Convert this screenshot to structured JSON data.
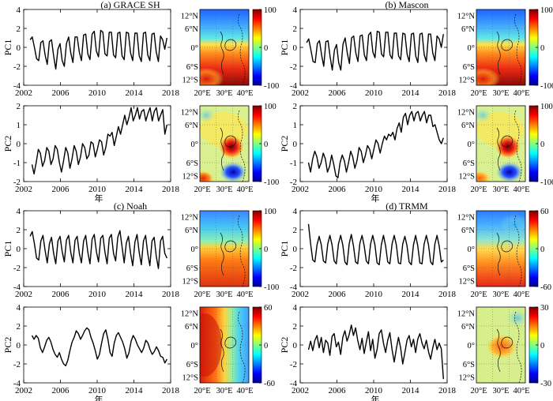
{
  "chart_data": [
    {
      "type": "line",
      "panel": "a",
      "title": "(a) GRACE SH",
      "ylabel": "PC1",
      "xlim": [
        2002,
        2018
      ],
      "ylim": [
        -4,
        4
      ],
      "xticks": [
        2002,
        2006,
        2010,
        2014,
        2018
      ],
      "yticks": [
        -4,
        -2,
        0,
        2,
        4
      ],
      "x_start": 2002.7,
      "values": [
        0.8,
        1.1,
        0.0,
        -1.2,
        -1.4,
        0.5,
        0.7,
        -0.8,
        -1.8,
        0.6,
        0.8,
        -0.9,
        -2.3,
        -0.2,
        0.4,
        -1.4,
        -2.0,
        0.4,
        1.1,
        -0.6,
        -1.6,
        1.1,
        1.1,
        -0.5,
        -1.4,
        1.3,
        1.4,
        -0.7,
        -1.3,
        1.4,
        1.7,
        -0.4,
        -1.0,
        1.8,
        1.6,
        -0.7,
        -0.9,
        1.6,
        1.6,
        -0.8,
        -1.1,
        1.5,
        1.6,
        -0.9,
        -1.3,
        1.6,
        1.5,
        -0.6,
        -1.4,
        1.5,
        1.5,
        -0.9,
        -1.5,
        1.5,
        1.6,
        -0.8,
        -1.4,
        1.4,
        1.5,
        -0.5,
        -1.5,
        1.2,
        0.8,
        -0.2,
        1.0
      ],
      "x_label": "",
      "map": {
        "colorbar_ticks": [
          "100",
          "0",
          "-100"
        ],
        "lat_labels": [
          "12°N",
          "6°N",
          "0°",
          "6°S",
          "12°S"
        ],
        "lon_labels": [
          "20°E",
          "30°E",
          "40°E"
        ],
        "pattern": "pc1a"
      }
    },
    {
      "type": "line",
      "panel": "a2",
      "title": "",
      "ylabel": "PC2",
      "xlim": [
        2002,
        2018
      ],
      "ylim": [
        -2,
        2
      ],
      "xticks": [
        2002,
        2006,
        2010,
        2014,
        2018
      ],
      "yticks": [
        -2,
        -1,
        0,
        1,
        2
      ],
      "x_start": 2002.9,
      "values": [
        -1.1,
        -1.6,
        -1.0,
        -0.3,
        -0.5,
        -1.2,
        -0.9,
        -0.2,
        -0.4,
        -1.1,
        -0.8,
        -0.1,
        -0.3,
        -1.0,
        -1.5,
        -0.9,
        -0.2,
        -0.5,
        -1.3,
        -0.8,
        -0.1,
        -0.4,
        -1.1,
        -0.7,
        0.0,
        -0.2,
        -0.8,
        -0.6,
        0.1,
        0.0,
        -0.7,
        -0.3,
        0.2,
        0.1,
        -0.6,
        -0.2,
        0.5,
        0.4,
        0.6,
        -0.1,
        0.4,
        0.9,
        0.5,
        1.0,
        1.5,
        1.0,
        1.4,
        1.9,
        1.2,
        1.5,
        1.9,
        1.3,
        1.7,
        1.8,
        1.2,
        1.6,
        1.9,
        1.2,
        1.7,
        1.9,
        1.2,
        1.5,
        1.8,
        0.5,
        1.0
      ],
      "x_label": "年",
      "map": {
        "colorbar_ticks": [
          "100",
          "0",
          "-100"
        ],
        "lat_labels": [
          "12°N",
          "6°N",
          "0°",
          "6°S",
          "12°S"
        ],
        "lon_labels": [
          "20°E",
          "30°E",
          "40°E"
        ],
        "pattern": "pc2a"
      }
    },
    {
      "type": "line",
      "panel": "b",
      "title": "(b) Mascon",
      "ylabel": "PC1",
      "xlim": [
        2002,
        2018
      ],
      "ylim": [
        -4,
        4
      ],
      "xticks": [
        2002,
        2006,
        2010,
        2014,
        2018
      ],
      "yticks": [
        -4,
        -2,
        0,
        2,
        4
      ],
      "x_start": 2002.7,
      "values": [
        0.5,
        0.9,
        -0.3,
        -1.5,
        -1.6,
        0.4,
        0.7,
        -0.8,
        -2.0,
        0.6,
        0.7,
        -1.0,
        -2.4,
        -0.3,
        0.3,
        -1.6,
        -2.4,
        0.3,
        1.0,
        -0.6,
        -1.7,
        1.0,
        1.2,
        -0.6,
        -1.5,
        1.2,
        1.3,
        -0.8,
        -1.4,
        1.3,
        1.6,
        -0.5,
        -1.1,
        1.7,
        1.6,
        -0.7,
        -1.0,
        1.6,
        1.6,
        -0.8,
        -1.2,
        1.5,
        1.5,
        -0.9,
        -1.3,
        1.5,
        1.4,
        -0.7,
        -1.5,
        1.4,
        1.5,
        -0.9,
        -1.6,
        1.4,
        1.5,
        -0.8,
        -1.5,
        1.4,
        1.4,
        -0.6,
        -1.4,
        1.2,
        0.9,
        0.0,
        1.4
      ],
      "x_label": "",
      "map": {
        "colorbar_ticks": [
          "100",
          "0",
          "-100"
        ],
        "lat_labels": [
          "12°N",
          "6°N",
          "0°",
          "6°S",
          "12°S"
        ],
        "lon_labels": [
          "20°E",
          "30°E",
          "40°E"
        ],
        "pattern": "pc1a"
      }
    },
    {
      "type": "line",
      "panel": "b2",
      "title": "",
      "ylabel": "PC2",
      "xlim": [
        2002,
        2018
      ],
      "ylim": [
        -2,
        2
      ],
      "xticks": [
        2002,
        2006,
        2010,
        2014,
        2018
      ],
      "yticks": [
        -2,
        -1,
        0,
        1,
        2
      ],
      "x_start": 2002.9,
      "values": [
        -1.0,
        -1.5,
        -0.8,
        -0.4,
        -0.7,
        -1.3,
        -1.0,
        -0.5,
        -0.8,
        -1.5,
        -1.2,
        -0.6,
        -1.1,
        -1.7,
        -1.8,
        -1.0,
        -0.6,
        -0.9,
        -1.5,
        -1.0,
        -0.4,
        -0.7,
        -1.3,
        -0.9,
        -0.2,
        -0.4,
        -1.0,
        -0.6,
        -0.1,
        -0.3,
        -0.8,
        -0.3,
        0.2,
        0.0,
        -0.5,
        0.0,
        0.4,
        0.2,
        0.5,
        0.4,
        0.6,
        0.2,
        0.8,
        1.1,
        0.6,
        1.4,
        1.6,
        1.0,
        1.5,
        1.7,
        1.2,
        1.6,
        1.7,
        1.2,
        1.5,
        1.7,
        1.1,
        1.5,
        1.5,
        0.9,
        1.0,
        0.6,
        0.2,
        0.0,
        0.3
      ],
      "x_label": "年",
      "map": {
        "colorbar_ticks": [
          "100",
          "0",
          "-100"
        ],
        "lat_labels": [
          "12°N",
          "6°N",
          "0°",
          "6°S",
          "12°S"
        ],
        "lon_labels": [
          "20°E",
          "30°E",
          "40°E"
        ],
        "pattern": "pc2b"
      }
    },
    {
      "type": "line",
      "panel": "c",
      "title": "(c) Noah",
      "ylabel": "PC1",
      "xlim": [
        2002,
        2018
      ],
      "ylim": [
        -4,
        4
      ],
      "xticks": [
        2002,
        2006,
        2010,
        2014,
        2018
      ],
      "yticks": [
        -4,
        -2,
        0,
        2,
        4
      ],
      "x_start": 2002.7,
      "values": [
        1.3,
        1.8,
        0.5,
        -1.0,
        -1.2,
        0.8,
        1.4,
        -0.2,
        -1.5,
        0.5,
        1.2,
        -0.5,
        -1.6,
        0.8,
        1.3,
        -0.3,
        -1.4,
        0.9,
        1.4,
        -0.4,
        -1.5,
        0.9,
        1.3,
        -0.5,
        -1.5,
        0.8,
        1.4,
        -0.4,
        -1.6,
        1.0,
        1.5,
        -0.3,
        -1.4,
        1.1,
        1.4,
        -0.4,
        -1.6,
        1.1,
        1.5,
        -0.5,
        -1.3,
        1.2,
        1.9,
        0.2,
        -1.5,
        0.6,
        1.3,
        -0.5,
        -1.8,
        0.7,
        1.5,
        -0.4,
        -1.7,
        0.8,
        1.4,
        -0.5,
        -1.8,
        0.8,
        1.2,
        -0.8,
        -2.1,
        0.8,
        1.3,
        -0.5,
        -1.0
      ],
      "x_label": "",
      "map": {
        "colorbar_ticks": [
          "100",
          "0",
          "-100"
        ],
        "lat_labels": [
          "12°N",
          "6°N",
          "0°",
          "6°S",
          "12°S"
        ],
        "lon_labels": [
          "20°E",
          "30°E",
          "40°E"
        ],
        "pattern": "pc1c"
      }
    },
    {
      "type": "line",
      "panel": "c2",
      "title": "",
      "ylabel": "PC2",
      "xlim": [
        2002,
        2018
      ],
      "ylim": [
        -4,
        4
      ],
      "xticks": [
        2002,
        2006,
        2010,
        2014,
        2018
      ],
      "yticks": [
        -4,
        -2,
        0,
        2,
        4
      ],
      "x_start": 2002.9,
      "values": [
        1.0,
        0.6,
        1.0,
        0.7,
        -0.3,
        -0.8,
        -0.2,
        0.5,
        0.8,
        0.3,
        -0.5,
        -1.0,
        -1.3,
        -0.8,
        -1.5,
        -2.0,
        -2.2,
        -1.6,
        -0.6,
        0.3,
        0.8,
        1.5,
        1.2,
        0.6,
        1.0,
        1.5,
        1.8,
        1.6,
        0.8,
        0.2,
        -0.6,
        -1.5,
        -1.0,
        0.2,
        1.2,
        1.6,
        0.6,
        -0.8,
        -1.2,
        0.2,
        1.0,
        1.3,
        0.8,
        0.3,
        -0.4,
        -1.4,
        -0.8,
        0.4,
        1.0,
        0.6,
        0.0,
        -0.4,
        -0.8,
        -0.3,
        0.5,
        0.2,
        -0.5,
        -1.0,
        -0.7,
        -0.2,
        -0.6,
        -1.2,
        -1.3,
        -1.9,
        -1.5
      ],
      "x_label": "年",
      "map": {
        "colorbar_ticks": [
          "60",
          "0",
          "-60"
        ],
        "lat_labels": [
          "12°N",
          "6°N",
          "0°",
          "6°S",
          "12°S"
        ],
        "lon_labels": [
          "20°E",
          "30°E",
          "40°E"
        ],
        "pattern": "pc2c"
      }
    },
    {
      "type": "line",
      "panel": "d",
      "title": "(d) TRMM",
      "ylabel": "PC1",
      "xlim": [
        2002,
        2018
      ],
      "ylim": [
        -4,
        4
      ],
      "xticks": [
        2002,
        2006,
        2010,
        2014,
        2018
      ],
      "yticks": [
        -4,
        -2,
        0,
        2,
        4
      ],
      "x_start": 2002.9,
      "values": [
        2.6,
        0.5,
        -1.2,
        -1.4,
        0.4,
        1.3,
        0.4,
        -1.3,
        -1.5,
        0.5,
        1.4,
        0.4,
        -1.3,
        -1.6,
        0.5,
        1.4,
        0.4,
        -1.4,
        -1.7,
        0.5,
        1.5,
        0.3,
        -1.4,
        -1.6,
        0.6,
        1.4,
        0.3,
        -1.3,
        -1.6,
        0.5,
        1.4,
        0.4,
        -1.5,
        -1.7,
        0.4,
        1.4,
        0.3,
        -1.4,
        -1.6,
        0.5,
        1.4,
        0.4,
        -1.5,
        -1.6,
        0.5,
        1.3,
        0.3,
        -1.4,
        -1.7,
        0.4,
        1.4,
        0.3,
        -1.5,
        -1.6,
        0.5,
        1.4,
        0.4,
        -1.4,
        -1.7,
        0.5,
        1.4,
        0.3,
        -1.4,
        -1.2
      ],
      "x_label": "",
      "map": {
        "colorbar_ticks": [
          "60",
          "0",
          "-60"
        ],
        "lat_labels": [
          "12°N",
          "6°N",
          "0°",
          "6°S",
          "12°S"
        ],
        "lon_labels": [
          "20°E",
          "30°E",
          "40°E"
        ],
        "pattern": "pc1d"
      }
    },
    {
      "type": "line",
      "panel": "d2",
      "title": "",
      "ylabel": "PC2",
      "xlim": [
        2002,
        2018
      ],
      "ylim": [
        -4,
        4
      ],
      "xticks": [
        2002,
        2006,
        2010,
        2014,
        2018
      ],
      "yticks": [
        -4,
        -2,
        0,
        2,
        4
      ],
      "x_start": 2002.9,
      "values": [
        -0.5,
        0.4,
        -0.6,
        0.5,
        1.0,
        -0.3,
        0.8,
        -0.8,
        0.5,
        0.2,
        -1.1,
        0.9,
        1.2,
        -0.2,
        0.3,
        -1.0,
        0.8,
        1.5,
        0.4,
        1.1,
        2.1,
        1.0,
        1.8,
        0.5,
        -0.5,
        0.7,
        -0.9,
        0.3,
        1.4,
        -0.6,
        0.6,
        -1.4,
        -0.5,
        1.2,
        1.6,
        0.2,
        -0.8,
        0.5,
        1.3,
        -0.5,
        -1.8,
        -0.4,
        0.8,
        -0.3,
        -2.0,
        -0.8,
        0.5,
        1.0,
        -0.2,
        0.6,
        -0.8,
        0.6,
        1.2,
        0.2,
        -0.4,
        0.5,
        -0.7,
        -1.5,
        -0.3,
        0.6,
        -0.5,
        0.2,
        -0.4,
        -3.6
      ],
      "x_label": "年",
      "map": {
        "colorbar_ticks": [
          "30",
          "0",
          "-30"
        ],
        "lat_labels": [
          "12°N",
          "6°N",
          "0°",
          "6°S",
          "12°S"
        ],
        "lon_labels": [
          "20°E",
          "30°E",
          "40°E"
        ],
        "pattern": "pc2d"
      }
    }
  ]
}
